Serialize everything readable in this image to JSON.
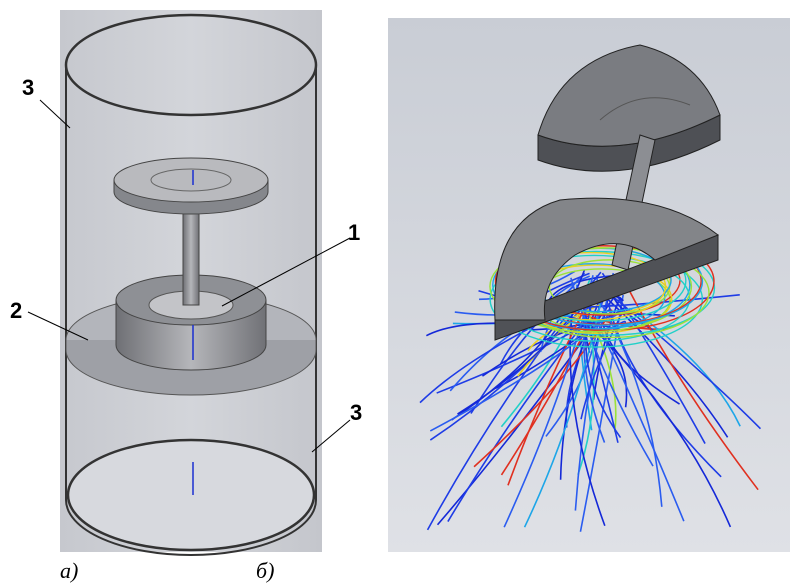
{
  "panels": [
    {
      "callouts": [
        "3",
        "1",
        "2",
        "3"
      ],
      "caption": "а)"
    },
    {
      "caption": "б)"
    }
  ]
}
